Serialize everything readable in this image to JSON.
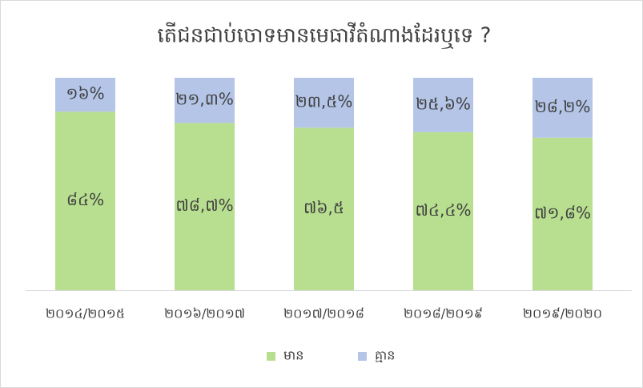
{
  "chart_data": {
    "type": "stacked_bar",
    "title": "តើជនជាប់ចោទមានមេធាវីតំណាងដែរឬទេ ?",
    "categories": [
      "២០១៤/២០១៥",
      "២០១៦/២០១៧",
      "២០១៧/២០១៨",
      "២០១៨/២០១៩",
      "២០១៩/២០២០"
    ],
    "series": [
      {
        "name": "មាន",
        "color": "#b8df90",
        "values": [
          84,
          78.7,
          76.5,
          74.4,
          71.8
        ],
        "value_labels": [
          "៨៤%",
          "៧៨,៧%",
          "៧៦,៥",
          "៧៤,៤%",
          "៧១,៨%"
        ]
      },
      {
        "name": "គ្មាន",
        "color": "#b4c5e7",
        "values": [
          16,
          21.3,
          23.5,
          25.6,
          28.2
        ],
        "value_labels": [
          "១៦%",
          "២១,៣%",
          "២៣,៥%",
          "២៥,៦%",
          "២៨,២%"
        ]
      }
    ],
    "ylim": [
      0,
      100
    ],
    "legend": "bottom"
  }
}
